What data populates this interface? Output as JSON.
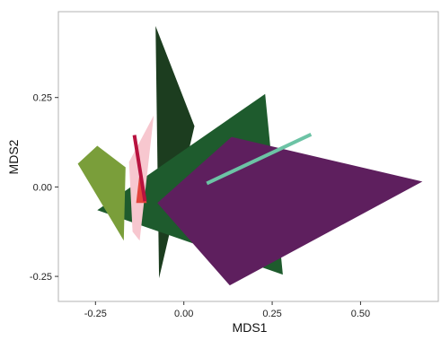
{
  "chart_data": {
    "type": "scatter",
    "subtype": "hull-polygons",
    "title": "",
    "xlabel": "MDS1",
    "ylabel": "MDS2",
    "xlim": [
      -0.355,
      0.72
    ],
    "ylim": [
      -0.32,
      0.49
    ],
    "x_ticks": [
      -0.25,
      0.0,
      0.25,
      0.5
    ],
    "x_tick_labels": [
      "-0.25",
      "0.00",
      "0.25",
      "0.50"
    ],
    "y_ticks": [
      -0.25,
      0.0,
      0.25
    ],
    "y_tick_labels": [
      "-0.25",
      "0.00",
      "0.25"
    ],
    "grid": false,
    "legend": "none",
    "series": [
      {
        "color": "#1c3d1f",
        "points": [
          [
            -0.08,
            0.45
          ],
          [
            0.03,
            0.17
          ],
          [
            -0.07,
            -0.255
          ]
        ]
      },
      {
        "color": "#1e5b2d",
        "points": [
          [
            -0.245,
            -0.065
          ],
          [
            0.23,
            0.26
          ],
          [
            0.28,
            -0.245
          ]
        ]
      },
      {
        "color": "#7a9e3a",
        "points": [
          [
            -0.3,
            0.065
          ],
          [
            -0.245,
            0.115
          ],
          [
            -0.165,
            0.055
          ],
          [
            -0.17,
            -0.15
          ]
        ]
      },
      {
        "color": "#f7c7cf",
        "points": [
          [
            -0.155,
            0.07
          ],
          [
            -0.085,
            0.2
          ],
          [
            -0.125,
            -0.15
          ],
          [
            -0.145,
            -0.125
          ]
        ]
      },
      {
        "color": "#e3443c",
        "points": [
          [
            -0.125,
            0.04
          ],
          [
            -0.105,
            -0.045
          ],
          [
            -0.135,
            -0.045
          ]
        ]
      },
      {
        "color": "#5e1f5e",
        "points": [
          [
            -0.075,
            -0.045
          ],
          [
            0.135,
            0.14
          ],
          [
            0.675,
            0.015
          ],
          [
            0.13,
            -0.275
          ]
        ]
      }
    ],
    "segments": [
      {
        "color": "#b8123f",
        "from": [
          -0.14,
          0.145
        ],
        "to": [
          -0.11,
          -0.04
        ]
      },
      {
        "color": "#6cc3a5",
        "from": [
          0.065,
          0.01
        ],
        "to": [
          0.36,
          0.147
        ]
      }
    ]
  }
}
